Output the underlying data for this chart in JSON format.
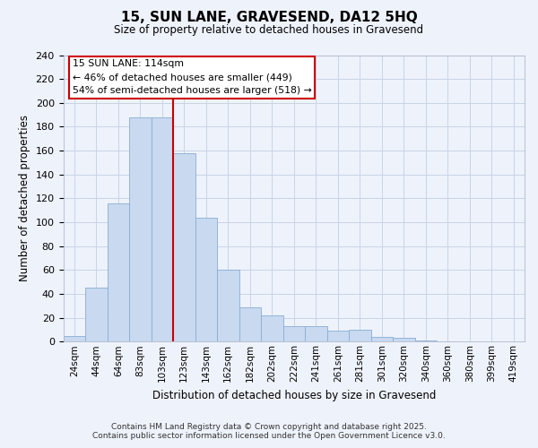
{
  "title": "15, SUN LANE, GRAVESEND, DA12 5HQ",
  "subtitle": "Size of property relative to detached houses in Gravesend",
  "xlabel": "Distribution of detached houses by size in Gravesend",
  "ylabel": "Number of detached properties",
  "bar_labels": [
    "24sqm",
    "44sqm",
    "64sqm",
    "83sqm",
    "103sqm",
    "123sqm",
    "143sqm",
    "162sqm",
    "182sqm",
    "202sqm",
    "222sqm",
    "241sqm",
    "261sqm",
    "281sqm",
    "301sqm",
    "320sqm",
    "340sqm",
    "360sqm",
    "380sqm",
    "399sqm",
    "419sqm"
  ],
  "bar_values": [
    5,
    45,
    116,
    188,
    188,
    158,
    104,
    60,
    29,
    22,
    13,
    13,
    9,
    10,
    4,
    3,
    1,
    0,
    0,
    0,
    0
  ],
  "bar_color": "#c8d9f0",
  "bar_edge_color": "#89aed4",
  "vline_x_index": 4.5,
  "vline_color": "#cc0000",
  "annotation_title": "15 SUN LANE: 114sqm",
  "annotation_line1": "← 46% of detached houses are smaller (449)",
  "annotation_line2": "54% of semi-detached houses are larger (518) →",
  "ann_box_color": "#cc0000",
  "grid_color": "#c8d4e8",
  "ylim": [
    0,
    240
  ],
  "yticks": [
    0,
    20,
    40,
    60,
    80,
    100,
    120,
    140,
    160,
    180,
    200,
    220,
    240
  ],
  "footer_line1": "Contains HM Land Registry data © Crown copyright and database right 2025.",
  "footer_line2": "Contains public sector information licensed under the Open Government Licence v3.0.",
  "bg_color": "#eef2fb"
}
